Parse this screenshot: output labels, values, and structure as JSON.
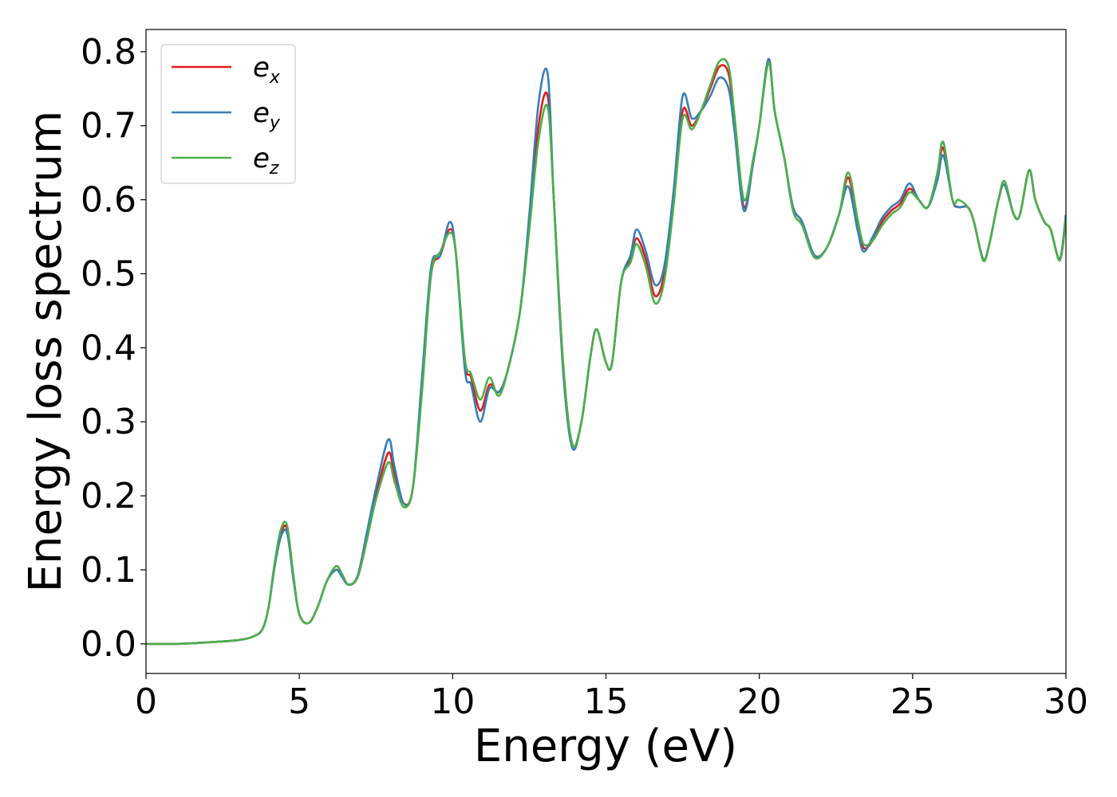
{
  "chart_data": {
    "type": "line",
    "xlabel": "Energy (eV)",
    "ylabel": "Energy loss spectrum",
    "xlim": [
      0,
      30
    ],
    "ylim": [
      -0.04,
      0.83
    ],
    "xticks": [
      0,
      5,
      10,
      15,
      20,
      25,
      30
    ],
    "xtick_labels": [
      "0",
      "5",
      "10",
      "15",
      "20",
      "25",
      "30"
    ],
    "yticks": [
      0.0,
      0.1,
      0.2,
      0.3,
      0.4,
      0.5,
      0.6,
      0.7,
      0.8
    ],
    "ytick_labels": [
      "0.0",
      "0.1",
      "0.2",
      "0.3",
      "0.4",
      "0.5",
      "0.6",
      "0.7",
      "0.8"
    ],
    "grid": false,
    "legend_position": "top-left",
    "x": [
      0,
      1,
      2,
      3,
      3.5,
      3.8,
      4.0,
      4.2,
      4.4,
      4.6,
      4.8,
      5.0,
      5.3,
      5.6,
      5.9,
      6.2,
      6.4,
      6.6,
      6.9,
      7.2,
      7.5,
      7.9,
      8.1,
      8.4,
      8.7,
      9.0,
      9.3,
      9.6,
      9.9,
      10.1,
      10.4,
      10.6,
      10.9,
      11.2,
      11.5,
      11.8,
      12.2,
      12.5,
      12.8,
      13.1,
      13.3,
      13.6,
      13.9,
      14.2,
      14.5,
      14.7,
      15.0,
      15.2,
      15.5,
      15.8,
      16.0,
      16.3,
      16.6,
      16.9,
      17.2,
      17.5,
      17.8,
      18.1,
      18.4,
      18.7,
      19.0,
      19.2,
      19.5,
      19.8,
      20.0,
      20.3,
      20.5,
      20.8,
      21.1,
      21.4,
      21.8,
      22.2,
      22.6,
      22.9,
      23.2,
      23.4,
      23.7,
      24.0,
      24.3,
      24.6,
      24.9,
      25.2,
      25.5,
      25.8,
      26.0,
      26.3,
      26.5,
      26.8,
      27.0,
      27.3,
      27.5,
      27.8,
      28.0,
      28.3,
      28.5,
      28.8,
      29.0,
      29.3,
      29.5,
      29.8,
      30.0
    ],
    "series": [
      {
        "name": "e_x",
        "label_base": "e",
        "label_sub": "x",
        "color": "#e41a1c",
        "values": [
          0.0,
          0.0,
          0.002,
          0.005,
          0.01,
          0.02,
          0.05,
          0.11,
          0.15,
          0.155,
          0.09,
          0.04,
          0.028,
          0.05,
          0.085,
          0.1,
          0.092,
          0.08,
          0.09,
          0.14,
          0.2,
          0.258,
          0.23,
          0.19,
          0.21,
          0.35,
          0.5,
          0.525,
          0.56,
          0.53,
          0.38,
          0.36,
          0.315,
          0.35,
          0.34,
          0.37,
          0.45,
          0.57,
          0.7,
          0.74,
          0.6,
          0.38,
          0.27,
          0.3,
          0.39,
          0.425,
          0.38,
          0.38,
          0.49,
          0.52,
          0.548,
          0.52,
          0.47,
          0.5,
          0.6,
          0.72,
          0.7,
          0.72,
          0.75,
          0.78,
          0.77,
          0.7,
          0.59,
          0.65,
          0.7,
          0.79,
          0.72,
          0.66,
          0.59,
          0.57,
          0.525,
          0.535,
          0.58,
          0.63,
          0.57,
          0.535,
          0.545,
          0.57,
          0.585,
          0.595,
          0.615,
          0.6,
          0.59,
          0.63,
          0.67,
          0.6,
          0.59,
          0.59,
          0.57,
          0.52,
          0.54,
          0.6,
          0.62,
          0.58,
          0.58,
          0.64,
          0.6,
          0.57,
          0.56,
          0.52,
          0.58
        ]
      },
      {
        "name": "e_y",
        "label_base": "e",
        "label_sub": "y",
        "color": "#377eb8",
        "values": [
          0.0,
          0.0,
          0.002,
          0.005,
          0.01,
          0.02,
          0.05,
          0.105,
          0.145,
          0.15,
          0.09,
          0.04,
          0.028,
          0.05,
          0.085,
          0.1,
          0.09,
          0.08,
          0.092,
          0.15,
          0.21,
          0.276,
          0.24,
          0.19,
          0.21,
          0.36,
          0.51,
          0.525,
          0.57,
          0.53,
          0.37,
          0.35,
          0.3,
          0.345,
          0.34,
          0.37,
          0.45,
          0.58,
          0.73,
          0.77,
          0.6,
          0.37,
          0.265,
          0.3,
          0.39,
          0.425,
          0.38,
          0.38,
          0.49,
          0.525,
          0.56,
          0.53,
          0.485,
          0.51,
          0.61,
          0.74,
          0.71,
          0.72,
          0.74,
          0.765,
          0.75,
          0.69,
          0.585,
          0.65,
          0.7,
          0.79,
          0.72,
          0.66,
          0.59,
          0.57,
          0.525,
          0.535,
          0.58,
          0.618,
          0.56,
          0.53,
          0.55,
          0.575,
          0.59,
          0.6,
          0.622,
          0.6,
          0.59,
          0.625,
          0.66,
          0.6,
          0.59,
          0.59,
          0.57,
          0.52,
          0.54,
          0.6,
          0.62,
          0.58,
          0.58,
          0.64,
          0.6,
          0.57,
          0.56,
          0.52,
          0.58
        ]
      },
      {
        "name": "e_z",
        "label_base": "e",
        "label_sub": "z",
        "color": "#4daf4a",
        "values": [
          0.0,
          0.0,
          0.002,
          0.005,
          0.01,
          0.02,
          0.05,
          0.11,
          0.155,
          0.16,
          0.095,
          0.04,
          0.028,
          0.05,
          0.085,
          0.105,
          0.094,
          0.08,
          0.09,
          0.14,
          0.195,
          0.245,
          0.22,
          0.185,
          0.21,
          0.34,
          0.5,
          0.53,
          0.555,
          0.53,
          0.385,
          0.365,
          0.33,
          0.36,
          0.335,
          0.37,
          0.45,
          0.56,
          0.68,
          0.725,
          0.6,
          0.38,
          0.27,
          0.3,
          0.39,
          0.425,
          0.38,
          0.38,
          0.49,
          0.515,
          0.54,
          0.51,
          0.46,
          0.49,
          0.59,
          0.71,
          0.695,
          0.72,
          0.755,
          0.787,
          0.78,
          0.71,
          0.6,
          0.655,
          0.7,
          0.785,
          0.72,
          0.66,
          0.585,
          0.565,
          0.522,
          0.535,
          0.58,
          0.637,
          0.575,
          0.54,
          0.545,
          0.565,
          0.58,
          0.59,
          0.61,
          0.6,
          0.59,
          0.635,
          0.678,
          0.6,
          0.6,
          0.59,
          0.57,
          0.518,
          0.54,
          0.6,
          0.625,
          0.58,
          0.58,
          0.64,
          0.6,
          0.57,
          0.56,
          0.518,
          0.575
        ]
      }
    ]
  }
}
